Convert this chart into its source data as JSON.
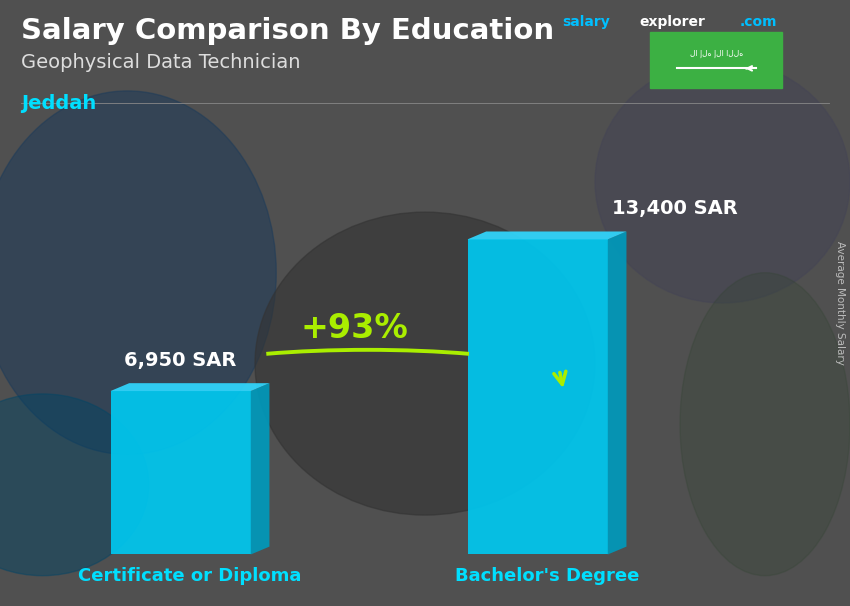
{
  "title": "Salary Comparison By Education",
  "subtitle": "Geophysical Data Technician",
  "city": "Jeddah",
  "website_salary": "salary",
  "website_explorer": "explorer",
  "website_com": ".com",
  "categories": [
    "Certificate or Diploma",
    "Bachelor's Degree"
  ],
  "values": [
    6950,
    13400
  ],
  "value_labels": [
    "6,950 SAR",
    "13,400 SAR"
  ],
  "bar_color_front": "#00C8F0",
  "bar_color_top": "#30D8FF",
  "bar_color_side": "#0099BB",
  "pct_change": "+93%",
  "pct_color": "#AAEE00",
  "arrow_color": "#AAEE00",
  "title_color": "#FFFFFF",
  "subtitle_color": "#DDDDDD",
  "city_color": "#00DFFF",
  "value_label_color": "#FFFFFF",
  "cat_label_color": "#00DFFF",
  "ylabel_text": "Average Monthly Salary",
  "ylabel_color": "#BBBBBB",
  "flag_bg": "#3CB043",
  "bg_color": "#606060",
  "figsize": [
    8.5,
    6.06
  ],
  "dpi": 100
}
